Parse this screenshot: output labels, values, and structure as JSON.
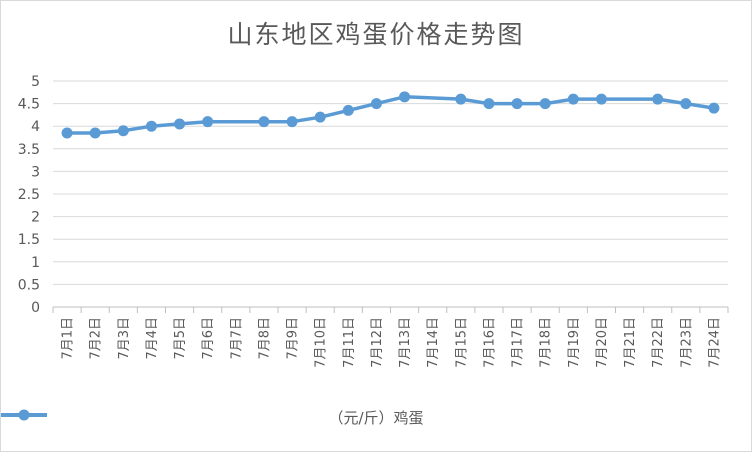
{
  "chart_data": {
    "type": "line",
    "title": "山东地区鸡蛋价格走势图",
    "categories": [
      "7月1日",
      "7月2日",
      "7月3日",
      "7月4日",
      "7月5日",
      "7月6日",
      "7月7日",
      "7月8日",
      "7月9日",
      "7月10日",
      "7月11日",
      "7月12日",
      "7月13日",
      "7月14日",
      "7月15日",
      "7月16日",
      "7月17日",
      "7月18日",
      "7月19日",
      "7月20日",
      "7月21日",
      "7月22日",
      "7月23日",
      "7月24日"
    ],
    "series": [
      {
        "name": "（元/斤）鸡蛋",
        "values": [
          3.85,
          3.85,
          3.9,
          4.0,
          4.05,
          4.1,
          null,
          4.1,
          4.1,
          4.2,
          4.35,
          4.5,
          4.65,
          null,
          4.6,
          4.5,
          4.5,
          4.5,
          4.6,
          4.6,
          null,
          4.6,
          4.5,
          4.4
        ],
        "color": "#5b9bd5"
      }
    ],
    "ylim": [
      0,
      5
    ],
    "yticks": [
      "0",
      "0.5",
      "1",
      "1.5",
      "2",
      "2.5",
      "3",
      "3.5",
      "4",
      "4.5",
      "5"
    ],
    "grid": true,
    "gap_handling": "connect",
    "legend_position": "bottom"
  }
}
